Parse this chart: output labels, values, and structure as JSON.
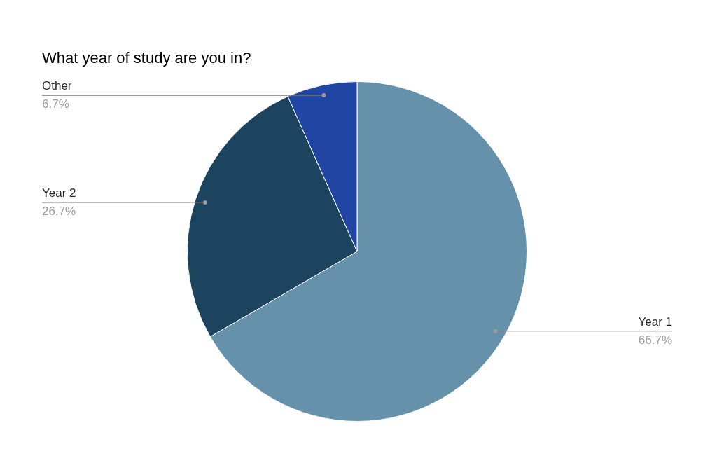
{
  "chart_data": {
    "type": "pie",
    "title": "What year of study are you in?",
    "categories": [
      "Year 1",
      "Year 2",
      "Other"
    ],
    "values": [
      66.7,
      26.7,
      6.7
    ],
    "value_labels": [
      "66.7%",
      "26.7%",
      "6.7%"
    ],
    "colors": [
      "#6591ab",
      "#1d445f",
      "#2145a3"
    ],
    "legend": false
  }
}
